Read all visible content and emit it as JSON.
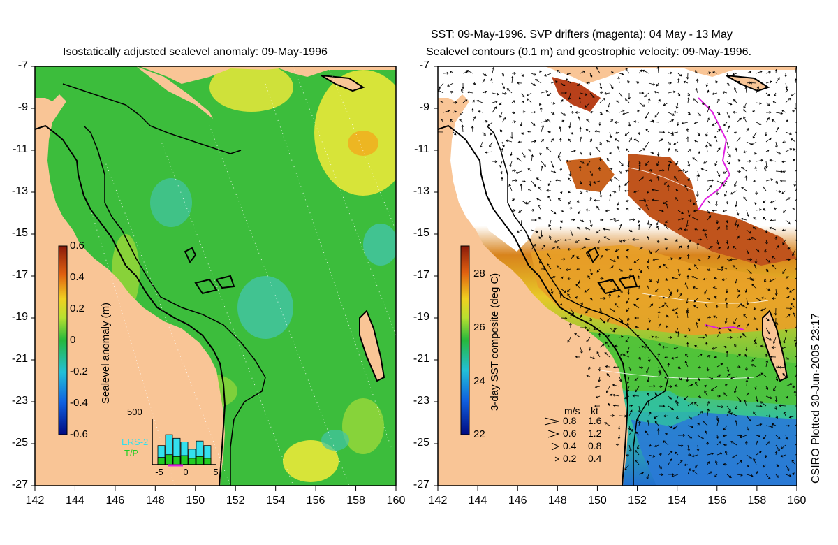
{
  "left_panel": {
    "title": "Isostatically adjusted sealevel anomaly: 09-May-1996",
    "colorbar": {
      "label": "Sealevel anomaly (m)",
      "ticks": [
        "0.6",
        "0.4",
        "0.2",
        "0",
        "-0.2",
        "-0.4",
        "-0.6"
      ]
    },
    "inset": {
      "ymax_label": "500",
      "legend": [
        "ERS-2",
        "T/P"
      ],
      "xticks": [
        "-5",
        "0",
        "5"
      ],
      "bars_ers2": [
        210,
        330,
        290,
        250,
        170,
        260,
        210
      ],
      "bars_tp": [
        80,
        110,
        90,
        100,
        70,
        90,
        70
      ]
    }
  },
  "right_panel": {
    "title_line1": "SST: 09-May-1996. SVP drifters (magenta): 04 May - 13 May",
    "title_line2": "Sealevel contours (0.1 m) and geostrophic velocity: 09-May-1996.",
    "colorbar": {
      "label": "3-day SST composite (deg C)",
      "ticks": [
        "28",
        "26",
        "24",
        "22"
      ]
    },
    "speed_legend": {
      "header": [
        "m/s",
        "kt"
      ],
      "rows": [
        [
          "0.8",
          "1.6"
        ],
        [
          "0.6",
          "1.2"
        ],
        [
          "0.4",
          "0.8"
        ],
        [
          "0.2",
          "0.4"
        ]
      ]
    }
  },
  "axes": {
    "y_ticks": [
      "-7",
      "-9",
      "-11",
      "-13",
      "-15",
      "-17",
      "-19",
      "-21",
      "-23",
      "-25",
      "-27"
    ],
    "x_ticks": [
      "142",
      "144",
      "146",
      "148",
      "150",
      "152",
      "154",
      "156",
      "158",
      "160"
    ]
  },
  "credit": "CSIRO Plotted 30-Jun-2005 23:17",
  "colors": {
    "land": "#f9c596",
    "sea_green": "#3cbd3c",
    "sea_dark": "#1ea64a",
    "anomaly_yellow": "#e8e838",
    "anomaly_cyan": "#42c4a6",
    "cloud": "#ffffff",
    "sst_warm": "#c0541c",
    "sst_cool": "#2a7ad6",
    "drifter": "#e020e0",
    "ers2": "#33e0ee",
    "tp": "#22cc22"
  }
}
